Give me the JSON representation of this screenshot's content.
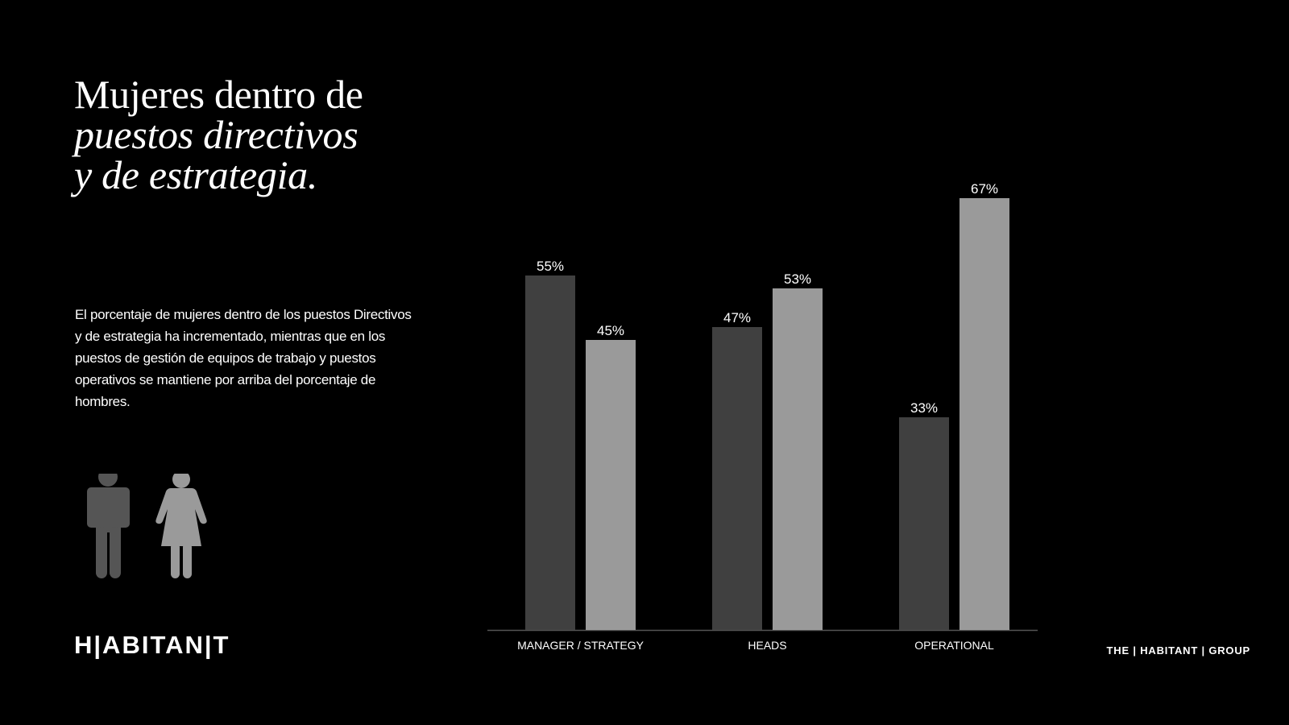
{
  "title": {
    "line1": "Mujeres dentro de",
    "line2": "puestos directivos",
    "line3": "y de estrategia."
  },
  "description": "El porcentaje de mujeres dentro de los puestos Directivos y de estrategia ha incrementado, mientras que en los puestos de gestión de equipos de trabajo y puestos operativos se mantiene por arriba del porcentaje de hombres.",
  "logo": "H|ABITAN|T",
  "footer_brand": "THE | HABITANT | GROUP",
  "icons": [
    "man-icon",
    "woman-icon"
  ],
  "colors": {
    "background": "#000000",
    "series_dark": "#404040",
    "series_light": "#9a9a9a",
    "text": "#ffffff",
    "axis": "#555555"
  },
  "chart_data": {
    "type": "bar",
    "categories": [
      "MANAGER / STRATEGY",
      "HEADS",
      "OPERATIONAL"
    ],
    "series": [
      {
        "values": [
          55,
          47,
          33
        ],
        "color": "#404040"
      },
      {
        "values": [
          45,
          53,
          67
        ],
        "color": "#9a9a9a"
      }
    ],
    "value_labels": [
      [
        "55%",
        "47%",
        "33%"
      ],
      [
        "45%",
        "53%",
        "67%"
      ]
    ],
    "ylim": [
      0,
      100
    ],
    "grid": false
  }
}
